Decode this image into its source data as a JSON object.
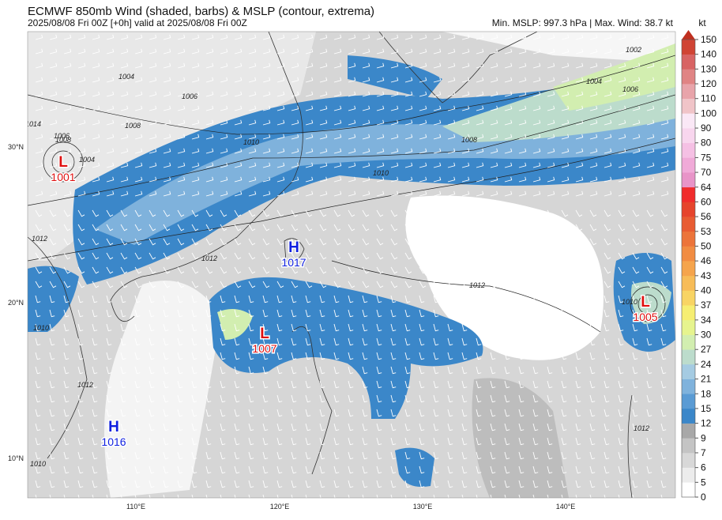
{
  "header": {
    "title": "ECMWF 850mb Wind (shaded, barbs) & MSLP (contour, extrema)",
    "subtitle": "2025/08/08 Fri 00Z [+0h] valid at 2025/08/08 Fri 00Z",
    "stats": "Min. MSLP: 997.3 hPa | Max. Wind: 38.7 kt"
  },
  "map": {
    "lat_labels": [
      "30°N",
      "20°N",
      "10°N"
    ],
    "lon_labels": [
      "110°E",
      "120°E",
      "130°E",
      "140°E"
    ],
    "centers": [
      {
        "type": "L",
        "pressure": "1001"
      },
      {
        "type": "H",
        "pressure": "1017"
      },
      {
        "type": "L",
        "pressure": "1007"
      },
      {
        "type": "L",
        "pressure": "1005"
      },
      {
        "type": "H",
        "pressure": "1016"
      }
    ],
    "contour_labels": [
      "1004",
      "1006",
      "1008",
      "1010",
      "1012",
      "1002",
      "1004",
      "1006",
      "1008",
      "1010",
      "1012",
      "1012",
      "1010",
      "1012",
      "1012",
      "1014",
      "1010",
      "1008",
      "1006",
      "1004",
      "1010"
    ]
  },
  "colorbar": {
    "unit": "kt",
    "levels": [
      0,
      5,
      6,
      7,
      9,
      12,
      15,
      18,
      21,
      24,
      27,
      30,
      34,
      37,
      40,
      43,
      46,
      50,
      53,
      56,
      60,
      64,
      70,
      75,
      80,
      90,
      100,
      110,
      120,
      130,
      140,
      150
    ],
    "colors": [
      "#ffffff",
      "#ececec",
      "#d8d8d8",
      "#c4c4c4",
      "#a8a8a8",
      "#3b87c9",
      "#5a9bd4",
      "#7fb2dc",
      "#a5cbe2",
      "#bcdccc",
      "#d2eeb0",
      "#e6f48e",
      "#f6ee72",
      "#f8d464",
      "#f7bc58",
      "#f5a44c",
      "#f18c42",
      "#ec743a",
      "#e85c32",
      "#e6442c",
      "#f02c2c",
      "#e894c8",
      "#f0aad8",
      "#f5c0e4",
      "#f8d6ee",
      "#fae8f6",
      "#f0c4c8",
      "#e8a4aa",
      "#e08484",
      "#d86464",
      "#d04434"
    ],
    "arrow_color": "#c03020"
  }
}
